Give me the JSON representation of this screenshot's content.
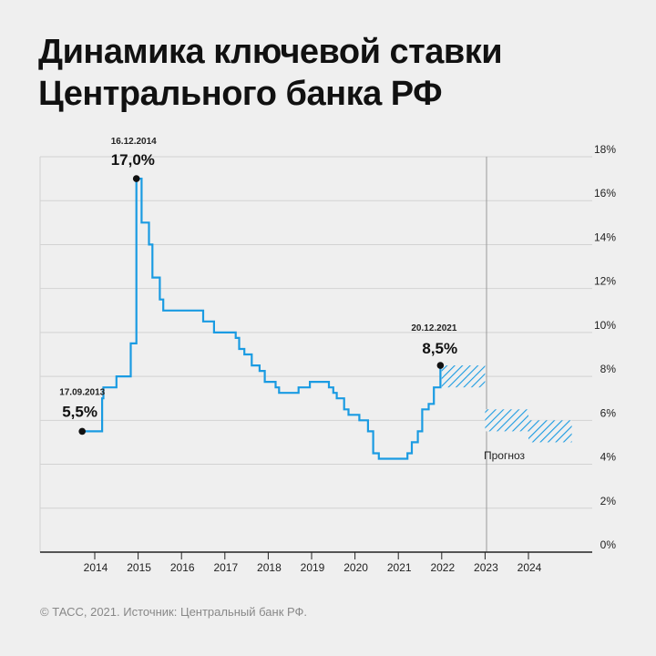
{
  "title": {
    "line1": "Динамика ключевой ставки",
    "line2": "Центрального банка РФ"
  },
  "footer": "© ТАСС, 2021. Источник: Центральный банк РФ.",
  "colors": {
    "series": "#1a9be2",
    "grid": "#d2d2d2",
    "axis": "#222222",
    "marker": "#111111",
    "background": "#efefef"
  },
  "chart_data": {
    "type": "line",
    "step": true,
    "x_unit": "year",
    "xlim": [
      2013.0,
      2025.0
    ],
    "ylim": [
      0,
      18
    ],
    "grid": true,
    "y_ticks": [
      "0%",
      "2%",
      "4%",
      "6%",
      "8%",
      "10%",
      "12%",
      "14%",
      "16%",
      "18%"
    ],
    "x_ticks": [
      "2014",
      "2015",
      "2016",
      "2017",
      "2018",
      "2019",
      "2020",
      "2021",
      "2022",
      "2023",
      "2024"
    ],
    "series": [
      {
        "x": [
          2013.71,
          2014.17,
          2014.2,
          2014.33,
          2014.5,
          2014.83,
          2014.96,
          2015.08,
          2015.12,
          2015.25,
          2015.33,
          2015.5,
          2015.58,
          2016.5,
          2016.75,
          2017.25,
          2017.33,
          2017.45,
          2017.62,
          2017.8,
          2017.92,
          2018.0,
          2018.17,
          2018.25,
          2018.7,
          2018.96,
          2019.4,
          2019.5,
          2019.58,
          2019.75,
          2019.85,
          2020.0,
          2020.1,
          2020.3,
          2020.42,
          2020.55,
          2021.21,
          2021.31,
          2021.45,
          2021.55,
          2021.7,
          2021.82,
          2021.97
        ],
        "y": [
          5.5,
          7.0,
          7.5,
          7.5,
          8.0,
          9.5,
          17.0,
          15.0,
          15.0,
          14.0,
          12.5,
          11.5,
          11.0,
          10.5,
          10.0,
          9.75,
          9.25,
          9.0,
          8.5,
          8.25,
          7.75,
          7.75,
          7.5,
          7.25,
          7.5,
          7.75,
          7.5,
          7.25,
          7.0,
          6.5,
          6.25,
          6.25,
          6.0,
          5.5,
          4.5,
          4.25,
          4.5,
          5.0,
          5.5,
          6.5,
          6.75,
          7.5,
          8.5
        ]
      }
    ],
    "forecast": [
      {
        "x_range": [
          2022.0,
          2023.0
        ],
        "y_range": [
          7.5,
          8.5
        ]
      },
      {
        "x_range": [
          2023.0,
          2024.0
        ],
        "y_range": [
          5.5,
          6.5
        ]
      },
      {
        "x_range": [
          2024.0,
          2025.0
        ],
        "y_range": [
          5.0,
          6.0
        ]
      }
    ],
    "annotations": [
      {
        "date": "17.09.2013",
        "value_label": "5,5%",
        "x": 2013.71,
        "y": 5.5
      },
      {
        "date": "16.12.2014",
        "value_label": "17,0%",
        "x": 2014.96,
        "y": 17.0
      },
      {
        "date": "20.12.2021",
        "value_label": "8,5%",
        "x": 2021.97,
        "y": 8.5
      }
    ],
    "forecast_label": "Прогноз"
  }
}
